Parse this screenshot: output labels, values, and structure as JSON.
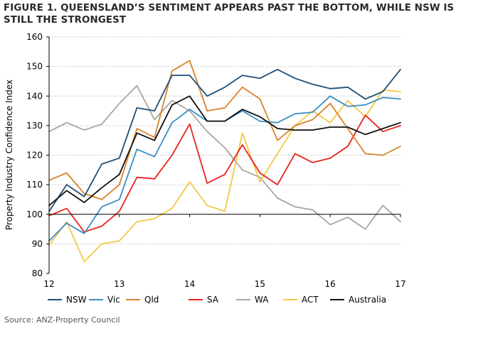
{
  "chart_data": {
    "type": "line",
    "title": "FIGURE 1. QUEENSLAND’S SENTIMENT APPEARS PAST THE BOTTOM, WHILE NSW IS STILL THE STRONGEST",
    "xlabel": "",
    "ylabel": "Property Industry Confidence Index",
    "ylim": [
      80,
      160
    ],
    "xlim": [
      12,
      17
    ],
    "y_ticks": [
      80,
      90,
      100,
      110,
      120,
      130,
      140,
      150,
      160
    ],
    "x_ticks": [
      12,
      13,
      14,
      15,
      16,
      17
    ],
    "y_tick_labels": [
      "80",
      "90",
      "100",
      "110",
      "120",
      "130",
      "140",
      "150",
      "160"
    ],
    "x_tick_labels": [
      "12",
      "13",
      "14",
      "15",
      "16",
      "17"
    ],
    "grid": true,
    "legend_position": "bottom",
    "x": [
      12,
      12.25,
      12.5,
      12.75,
      13,
      13.25,
      13.5,
      13.75,
      14,
      14.25,
      14.5,
      14.75,
      15,
      15.25,
      15.5,
      15.75,
      16,
      16.25,
      16.5,
      16.75,
      17
    ],
    "series": [
      {
        "name": "NSW",
        "color": "#1f4e79",
        "values": [
          101,
          110,
          106,
          117,
          119,
          136,
          135,
          147,
          147,
          140,
          143,
          147,
          146,
          149,
          146,
          144,
          142.5,
          143,
          139,
          141.5,
          149
        ]
      },
      {
        "name": "Vic",
        "color": "#3a8fc4",
        "values": [
          91,
          97,
          93.5,
          102.5,
          105,
          122,
          119.5,
          131,
          135.5,
          131.5,
          131.5,
          135,
          131.5,
          131,
          134,
          134.5,
          140,
          136.5,
          137,
          139.5,
          139
        ]
      },
      {
        "name": "Qld",
        "color": "#d9822b",
        "values": [
          111.5,
          114,
          107,
          105,
          110,
          129,
          126,
          148.5,
          152,
          135,
          136,
          143,
          139,
          125,
          130,
          132,
          137.5,
          129,
          120.5,
          120,
          123
        ]
      },
      {
        "name": "SA",
        "color": "#e8231f",
        "values": [
          99.5,
          102,
          94,
          96,
          101,
          112.5,
          112,
          120,
          130.5,
          110.5,
          113.5,
          123.5,
          114,
          110,
          120.5,
          117.5,
          119,
          123,
          133.5,
          128,
          130
        ]
      },
      {
        "name": "WA",
        "color": "#aaa59f",
        "values": [
          128,
          131,
          128.5,
          130.5,
          137.5,
          143.5,
          132,
          138.5,
          135,
          128,
          122.5,
          115,
          112.5,
          105.5,
          102.5,
          101.5,
          96.5,
          99,
          95,
          103,
          97.5
        ]
      },
      {
        "name": "ACT",
        "color": "#f5c842",
        "values": [
          89.5,
          97.5,
          84,
          90,
          91,
          97.5,
          98.5,
          102,
          111,
          103,
          101,
          127.5,
          111,
          120.5,
          130,
          135,
          131,
          138.5,
          133,
          142,
          141.5
        ]
      },
      {
        "name": "Australia",
        "color": "#111111",
        "values": [
          103,
          108,
          104,
          109,
          113.5,
          127.5,
          125,
          137,
          140,
          131.5,
          131.5,
          135.5,
          133,
          129,
          128.5,
          128.5,
          129.5,
          129.5,
          127,
          129,
          131
        ]
      }
    ],
    "source": "Source: ANZ-Property Council"
  }
}
